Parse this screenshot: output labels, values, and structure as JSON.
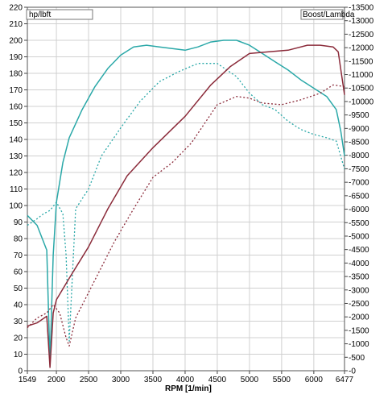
{
  "chart_data": {
    "type": "line",
    "left_axis_label": "hp/lbft",
    "right_axis_label": "Boost/Lambda",
    "xlabel": "RPM  [1/min]",
    "x_range": [
      1549,
      6477
    ],
    "x_ticks": [
      "1549",
      "2000",
      "2500",
      "3000",
      "3500",
      "4000",
      "4500",
      "5000",
      "5500",
      "6000",
      "6477"
    ],
    "left_range": [
      0,
      220
    ],
    "left_ticks": [
      "0",
      "10",
      "20",
      "30",
      "40",
      "50",
      "60",
      "70",
      "80",
      "90",
      "100",
      "110",
      "120",
      "130",
      "140",
      "150",
      "160",
      "170",
      "180",
      "190",
      "200",
      "210",
      "220"
    ],
    "right_range": [
      0,
      13500
    ],
    "right_ticks": [
      "-0",
      "-500",
      "-1000",
      "-1500",
      "-2000",
      "-2500",
      "-3000",
      "-3500",
      "-4000",
      "-4500",
      "-5000",
      "-5500",
      "-6000",
      "-6500",
      "-7000",
      "-7500",
      "-8000",
      "-8500",
      "-9000",
      "-9500",
      "-10000",
      "-10500",
      "-11000",
      "-11500",
      "-12000",
      "-12500",
      "-13000",
      "-13500"
    ],
    "grid": true,
    "colors": {
      "teal": "#2aa8a8",
      "maroon": "#8b2b3a",
      "grid": "#d0d0d0"
    },
    "series": [
      {
        "color": "#2aa8a8",
        "style": "solid",
        "axis": "left",
        "x": [
          1549,
          1700,
          1850,
          1900,
          1950,
          2000,
          2100,
          2200,
          2400,
          2600,
          2800,
          3000,
          3200,
          3400,
          3600,
          3800,
          4000,
          4200,
          4400,
          4600,
          4800,
          5000,
          5200,
          5400,
          5600,
          5800,
          6000,
          6200,
          6350,
          6420,
          6477
        ],
        "y": [
          94,
          88,
          73,
          5,
          70,
          102,
          126,
          141,
          158,
          172,
          183,
          191,
          196,
          197,
          196,
          195,
          194,
          196,
          199,
          200,
          200,
          197,
          192,
          187,
          182,
          176,
          171,
          166,
          158,
          145,
          130
        ]
      },
      {
        "color": "#2aa8a8",
        "style": "dotted",
        "axis": "left",
        "x": [
          1549,
          1700,
          1800,
          1900,
          2000,
          2100,
          2150,
          2200,
          2300,
          2500,
          2700,
          3000,
          3300,
          3600,
          3900,
          4200,
          4500,
          4800,
          5000,
          5200,
          5400,
          5600,
          5800,
          6000,
          6200,
          6350,
          6477
        ],
        "y": [
          88,
          92,
          95,
          97,
          102,
          95,
          70,
          18,
          98,
          110,
          130,
          147,
          163,
          175,
          181,
          186,
          186,
          178,
          168,
          161,
          158,
          151,
          146,
          143,
          141,
          139,
          122
        ]
      },
      {
        "color": "#8b2b3a",
        "style": "solid",
        "axis": "left",
        "x": [
          1549,
          1700,
          1850,
          1900,
          1950,
          2000,
          2200,
          2500,
          2800,
          3100,
          3500,
          4000,
          4400,
          4700,
          5000,
          5300,
          5600,
          5900,
          6100,
          6300,
          6380,
          6477
        ],
        "y": [
          27,
          29,
          33,
          2,
          35,
          43,
          56,
          75,
          98,
          118,
          135,
          154,
          173,
          184,
          192,
          193,
          194,
          197,
          197,
          196,
          193,
          167
        ]
      },
      {
        "color": "#8b2b3a",
        "style": "dotted",
        "axis": "left",
        "x": [
          1549,
          1700,
          1850,
          1950,
          2050,
          2150,
          2200,
          2300,
          2600,
          2900,
          3200,
          3500,
          3800,
          4100,
          4500,
          4800,
          5000,
          5200,
          5500,
          5800,
          6100,
          6300,
          6477
        ],
        "y": [
          26,
          32,
          35,
          40,
          35,
          20,
          15,
          32,
          55,
          78,
          98,
          117,
          126,
          138,
          161,
          166,
          165,
          162,
          161,
          164,
          168,
          173,
          172
        ]
      }
    ]
  }
}
